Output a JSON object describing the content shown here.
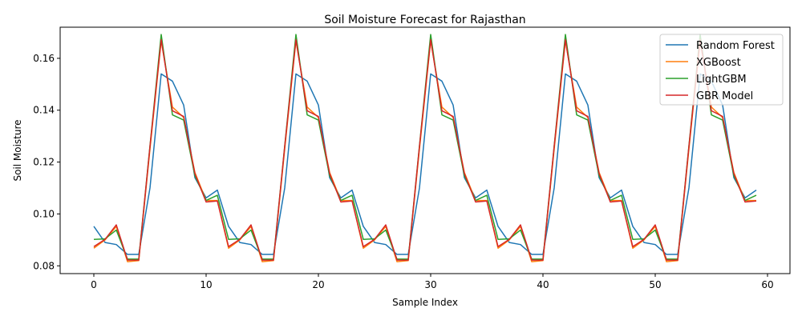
{
  "chart_data": {
    "type": "line",
    "title": "Soil Moisture Forecast for Rajasthan",
    "xlabel": "Sample Index",
    "ylabel": "Soil Moisture",
    "xlim": [
      -3,
      62
    ],
    "ylim": [
      0.077,
      0.172
    ],
    "xticks": [
      0,
      10,
      20,
      30,
      40,
      50,
      60
    ],
    "yticks": [
      0.08,
      0.1,
      0.12,
      0.14,
      0.16
    ],
    "ytick_labels": [
      "0.08",
      "0.10",
      "0.12",
      "0.14",
      "0.16"
    ],
    "legend_position": "top-right",
    "grid": false,
    "x": [
      0,
      1,
      2,
      3,
      4,
      5,
      6,
      7,
      8,
      9,
      10,
      11,
      12,
      13,
      14,
      15,
      16,
      17,
      18,
      19,
      20,
      21,
      22,
      23,
      24,
      25,
      26,
      27,
      28,
      29,
      30,
      31,
      32,
      33,
      34,
      35,
      36,
      37,
      38,
      39,
      40,
      41,
      42,
      43,
      44,
      45,
      46,
      47,
      48,
      49,
      50,
      51,
      52,
      53,
      54,
      55,
      56,
      57,
      58,
      59
    ],
    "series": [
      {
        "name": "Random Forest",
        "color": "#1f77b4",
        "values": [
          0.0952,
          0.089,
          0.0882,
          0.0844,
          0.0844,
          0.11,
          0.154,
          0.1512,
          0.142,
          0.114,
          0.1062,
          0.1092,
          0.0952,
          0.089,
          0.0882,
          0.0844,
          0.0844,
          0.11,
          0.154,
          0.1512,
          0.142,
          0.114,
          0.1062,
          0.1092,
          0.0952,
          0.089,
          0.0882,
          0.0844,
          0.0844,
          0.11,
          0.154,
          0.1512,
          0.142,
          0.114,
          0.1062,
          0.1092,
          0.0952,
          0.089,
          0.0882,
          0.0844,
          0.0844,
          0.11,
          0.154,
          0.1512,
          0.142,
          0.114,
          0.1062,
          0.1092,
          0.0952,
          0.089,
          0.0882,
          0.0844,
          0.0844,
          0.11,
          0.154,
          0.1512,
          0.142,
          0.114,
          0.1062,
          0.1092
        ]
      },
      {
        "name": "XGBoost",
        "color": "#ff7f0e",
        "values": [
          0.0868,
          0.09,
          0.0952,
          0.0816,
          0.082,
          0.125,
          0.1668,
          0.1412,
          0.1372,
          0.116,
          0.1052,
          0.1052,
          0.0868,
          0.09,
          0.0952,
          0.0816,
          0.082,
          0.125,
          0.1668,
          0.1412,
          0.1372,
          0.116,
          0.1052,
          0.1052,
          0.0868,
          0.09,
          0.0952,
          0.0816,
          0.082,
          0.125,
          0.1668,
          0.1412,
          0.1372,
          0.116,
          0.1052,
          0.1052,
          0.0868,
          0.09,
          0.0952,
          0.0816,
          0.082,
          0.125,
          0.1668,
          0.1412,
          0.1372,
          0.116,
          0.1052,
          0.1052,
          0.0868,
          0.09,
          0.0952,
          0.0816,
          0.082,
          0.125,
          0.1668,
          0.1412,
          0.1372,
          0.116,
          0.1052,
          0.1052
        ]
      },
      {
        "name": "LightGBM",
        "color": "#2ca02c",
        "values": [
          0.0902,
          0.0904,
          0.0938,
          0.0826,
          0.0826,
          0.1262,
          0.1692,
          0.1382,
          0.1362,
          0.1148,
          0.1052,
          0.1072,
          0.0902,
          0.0904,
          0.0938,
          0.0826,
          0.0826,
          0.1262,
          0.1692,
          0.1382,
          0.1362,
          0.1148,
          0.1052,
          0.1072,
          0.0902,
          0.0904,
          0.0938,
          0.0826,
          0.0826,
          0.1262,
          0.1692,
          0.1382,
          0.1362,
          0.1148,
          0.1052,
          0.1072,
          0.0902,
          0.0904,
          0.0938,
          0.0826,
          0.0826,
          0.1262,
          0.1692,
          0.1382,
          0.1362,
          0.1148,
          0.1052,
          0.1072,
          0.0902,
          0.0904,
          0.0938,
          0.0826,
          0.0826,
          0.1262,
          0.1692,
          0.1382,
          0.1362,
          0.1148,
          0.1052,
          0.1072
        ]
      },
      {
        "name": "GBR Model",
        "color": "#d62728",
        "values": [
          0.0874,
          0.0902,
          0.0958,
          0.0822,
          0.0822,
          0.126,
          0.1672,
          0.1398,
          0.1376,
          0.1156,
          0.1046,
          0.105,
          0.0874,
          0.0902,
          0.0958,
          0.0822,
          0.0822,
          0.126,
          0.1672,
          0.1398,
          0.1376,
          0.1156,
          0.1046,
          0.105,
          0.0874,
          0.0902,
          0.0958,
          0.0822,
          0.0822,
          0.126,
          0.1672,
          0.1398,
          0.1376,
          0.1156,
          0.1046,
          0.105,
          0.0874,
          0.0902,
          0.0958,
          0.0822,
          0.0822,
          0.126,
          0.1672,
          0.1398,
          0.1376,
          0.1156,
          0.1046,
          0.105,
          0.0874,
          0.0902,
          0.0958,
          0.0822,
          0.0822,
          0.126,
          0.1672,
          0.1398,
          0.1376,
          0.1156,
          0.1046,
          0.105
        ]
      }
    ]
  }
}
